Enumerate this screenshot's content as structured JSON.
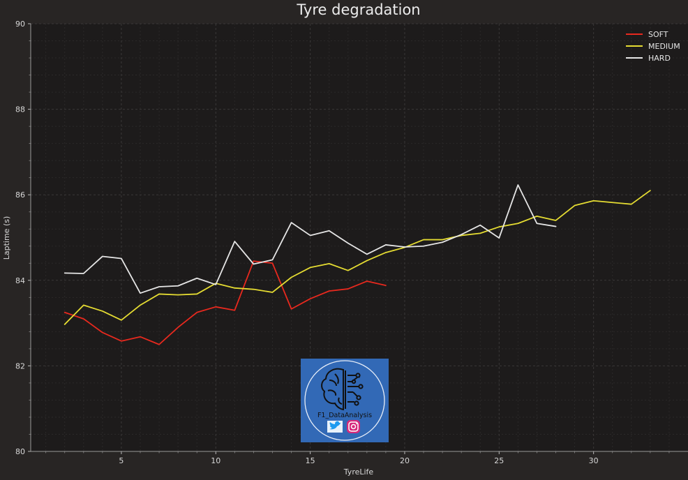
{
  "chart_data": {
    "type": "line",
    "title": "Tyre degradation",
    "xlabel": "TyreLife",
    "ylabel": "Laptime (s)",
    "xlim": [
      0.2,
      35
    ],
    "ylim": [
      80,
      90
    ],
    "xticks": [
      5,
      10,
      15,
      20,
      25,
      30
    ],
    "yticks": [
      80,
      82,
      84,
      86,
      88,
      90
    ],
    "grid": true,
    "legend_position": "top-right",
    "series": [
      {
        "name": "SOFT",
        "color": "#e8291e",
        "x": [
          2,
          3,
          4,
          5,
          6,
          7,
          8,
          9,
          10,
          11,
          12,
          13,
          14,
          15,
          16,
          17,
          18,
          19
        ],
        "y": [
          83.25,
          83.1,
          82.78,
          82.58,
          82.68,
          82.5,
          82.9,
          83.25,
          83.38,
          83.3,
          84.45,
          84.4,
          83.33,
          83.57,
          83.75,
          83.8,
          83.98,
          83.88
        ]
      },
      {
        "name": "MEDIUM",
        "color": "#e5dc32",
        "x": [
          2,
          3,
          4,
          5,
          6,
          7,
          8,
          9,
          10,
          11,
          12,
          13,
          14,
          15,
          16,
          17,
          18,
          19,
          20,
          21,
          22,
          23,
          24,
          25,
          26,
          27,
          28,
          29,
          30,
          31,
          32,
          33
        ],
        "y": [
          82.97,
          83.42,
          83.28,
          83.07,
          83.42,
          83.68,
          83.66,
          83.68,
          83.93,
          83.82,
          83.79,
          83.72,
          84.07,
          84.3,
          84.39,
          84.23,
          84.46,
          84.65,
          84.77,
          84.95,
          84.95,
          85.05,
          85.1,
          85.25,
          85.33,
          85.5,
          85.4,
          85.75,
          85.86,
          85.82,
          85.78,
          86.1
        ]
      },
      {
        "name": "HARD",
        "color": "#e6e6e6",
        "x": [
          2,
          3,
          4,
          5,
          6,
          7,
          8,
          9,
          10,
          11,
          12,
          13,
          14,
          15,
          16,
          17,
          18,
          19,
          20,
          21,
          22,
          23,
          24,
          25,
          26,
          27,
          28
        ],
        "y": [
          84.17,
          84.16,
          84.56,
          84.51,
          83.7,
          83.85,
          83.87,
          84.05,
          83.9,
          84.91,
          84.38,
          84.48,
          85.35,
          85.05,
          85.16,
          84.87,
          84.61,
          84.83,
          84.78,
          84.8,
          84.89,
          85.07,
          85.29,
          84.99,
          86.23,
          85.33,
          85.26
        ]
      }
    ]
  },
  "logo": {
    "text": "F1_DataAnalysis",
    "icons": [
      "brain-circuit-icon",
      "twitter-icon",
      "instagram-icon"
    ],
    "background": "#3269b6"
  }
}
